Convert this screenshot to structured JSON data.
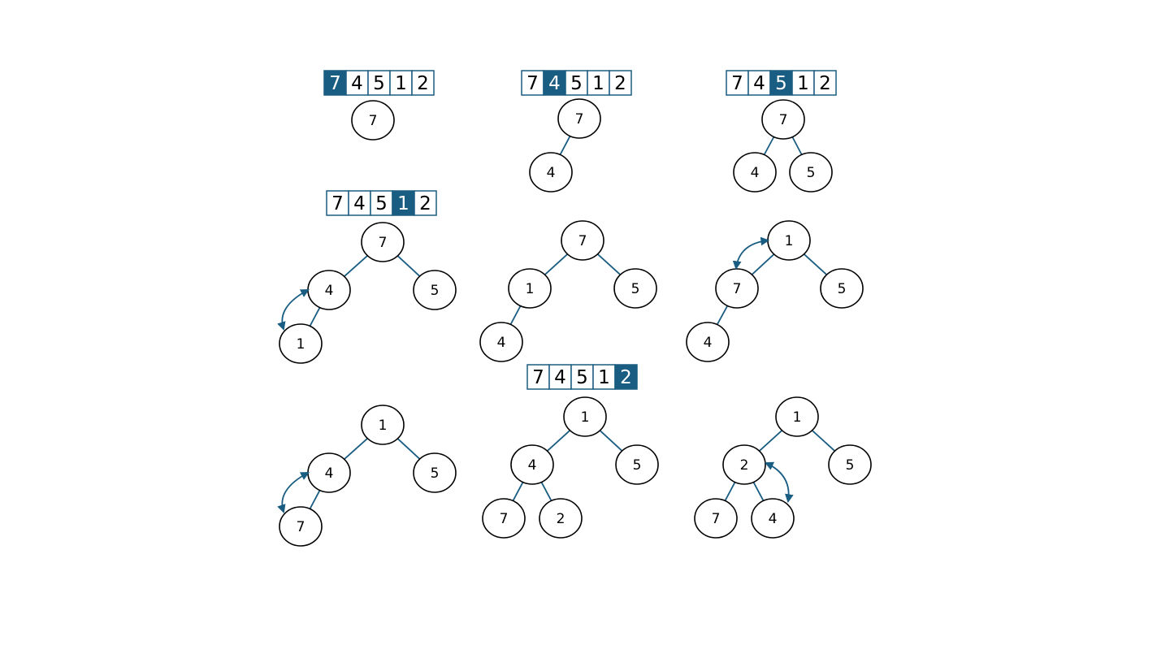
{
  "colors": {
    "accent": "#1a5d82",
    "node_stroke": "#000000",
    "text": "#000000",
    "highlight_text": "#ffffff"
  },
  "panels": [
    {
      "id": "p1",
      "array": {
        "values": [
          "7",
          "4",
          "5",
          "1",
          "2"
        ],
        "highlight": 0
      },
      "nodes": [
        {
          "label": "7"
        }
      ],
      "edges": [],
      "swaps": []
    },
    {
      "id": "p2",
      "array": {
        "values": [
          "7",
          "4",
          "5",
          "1",
          "2"
        ],
        "highlight": 1
      },
      "nodes": [
        {
          "label": "7"
        },
        {
          "label": "4"
        }
      ],
      "edges": [
        [
          0,
          1
        ]
      ],
      "swaps": []
    },
    {
      "id": "p3",
      "array": {
        "values": [
          "7",
          "4",
          "5",
          "1",
          "2"
        ],
        "highlight": 2
      },
      "nodes": [
        {
          "label": "7"
        },
        {
          "label": "4"
        },
        {
          "label": "5"
        }
      ],
      "edges": [
        [
          0,
          1
        ],
        [
          0,
          2
        ]
      ],
      "swaps": []
    },
    {
      "id": "p4",
      "array": {
        "values": [
          "7",
          "4",
          "5",
          "1",
          "2"
        ],
        "highlight": 3
      },
      "nodes": [
        {
          "label": "7"
        },
        {
          "label": "4"
        },
        {
          "label": "5"
        },
        {
          "label": "1"
        }
      ],
      "edges": [
        [
          0,
          1
        ],
        [
          0,
          2
        ],
        [
          1,
          3
        ]
      ],
      "swaps": [
        [
          1,
          3
        ]
      ]
    },
    {
      "id": "p5",
      "array": null,
      "nodes": [
        {
          "label": "7"
        },
        {
          "label": "1"
        },
        {
          "label": "5"
        },
        {
          "label": "4"
        }
      ],
      "edges": [
        [
          0,
          1
        ],
        [
          0,
          2
        ],
        [
          1,
          3
        ]
      ],
      "swaps": []
    },
    {
      "id": "p6",
      "array": null,
      "nodes": [
        {
          "label": "1"
        },
        {
          "label": "7"
        },
        {
          "label": "5"
        },
        {
          "label": "4"
        }
      ],
      "edges": [
        [
          0,
          1
        ],
        [
          0,
          2
        ],
        [
          1,
          3
        ]
      ],
      "swaps": [
        [
          0,
          1
        ]
      ]
    },
    {
      "id": "p7",
      "array": null,
      "nodes": [
        {
          "label": "1"
        },
        {
          "label": "4"
        },
        {
          "label": "5"
        },
        {
          "label": "7"
        }
      ],
      "edges": [
        [
          0,
          1
        ],
        [
          0,
          2
        ],
        [
          1,
          3
        ]
      ],
      "swaps": [
        [
          1,
          3
        ]
      ]
    },
    {
      "id": "p8",
      "array": {
        "values": [
          "7",
          "4",
          "5",
          "1",
          "2"
        ],
        "highlight": 4
      },
      "nodes": [
        {
          "label": "1"
        },
        {
          "label": "4"
        },
        {
          "label": "5"
        },
        {
          "label": "7"
        },
        {
          "label": "2"
        }
      ],
      "edges": [
        [
          0,
          1
        ],
        [
          0,
          2
        ],
        [
          1,
          3
        ],
        [
          1,
          4
        ]
      ],
      "swaps": []
    },
    {
      "id": "p9",
      "array": null,
      "nodes": [
        {
          "label": "1"
        },
        {
          "label": "2"
        },
        {
          "label": "5"
        },
        {
          "label": "7"
        },
        {
          "label": "4"
        }
      ],
      "edges": [
        [
          0,
          1
        ],
        [
          0,
          2
        ],
        [
          1,
          3
        ],
        [
          1,
          4
        ]
      ],
      "swaps": [
        [
          1,
          4
        ]
      ]
    }
  ]
}
